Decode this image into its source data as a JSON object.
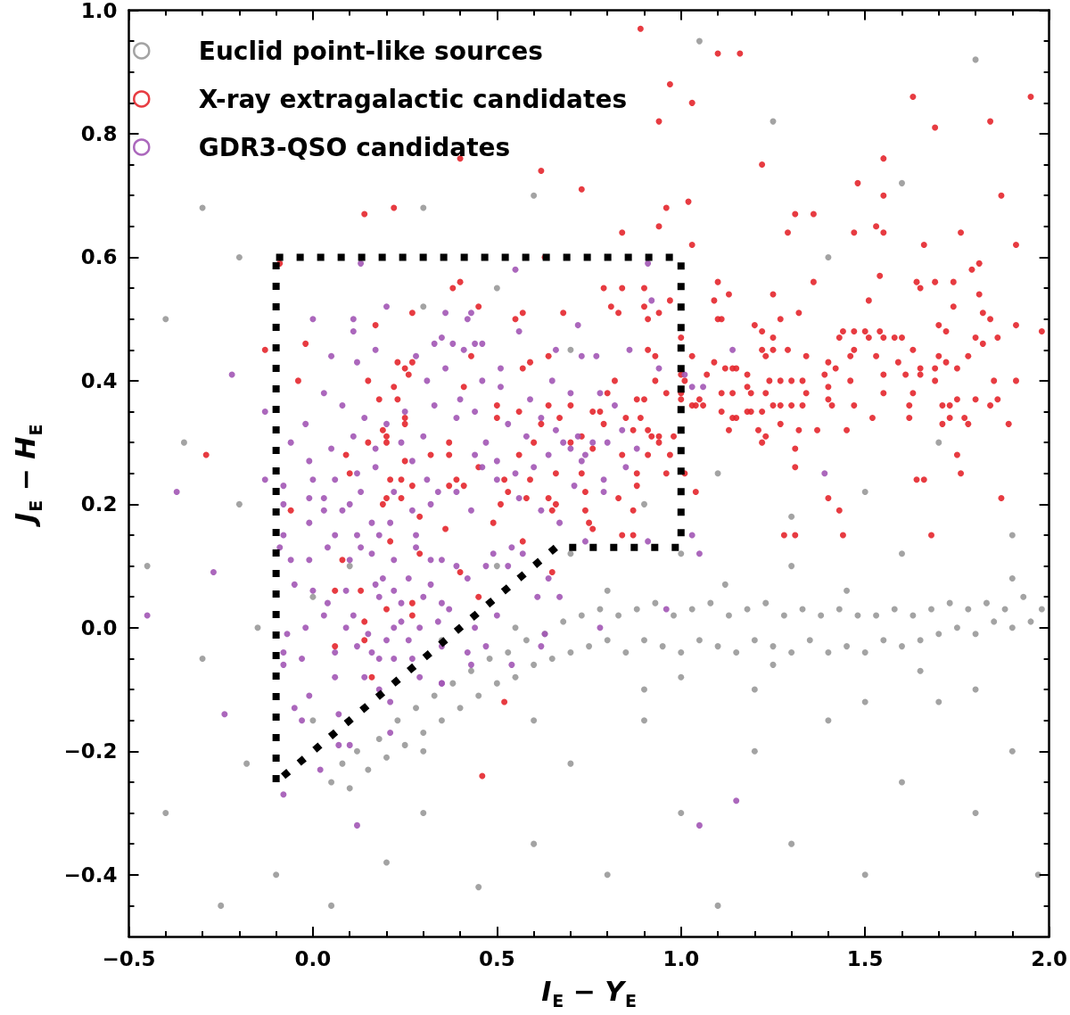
{
  "chart_data": {
    "type": "scatter",
    "xlabel": "I$_{E}$ − Y$_{E}$",
    "ylabel": "J$_{E}$ − H$_{E}$",
    "xlim": [
      -0.5,
      2.0
    ],
    "ylim": [
      -0.5,
      1.0
    ],
    "xticks": [
      {
        "value": -0.5,
        "label": "−0.5"
      },
      {
        "value": -0.4,
        "label": null
      },
      {
        "value": -0.3,
        "label": null
      },
      {
        "value": -0.2,
        "label": null
      },
      {
        "value": -0.1,
        "label": null
      },
      {
        "value": 0.0,
        "label": "0.0"
      },
      {
        "value": 0.1,
        "label": null
      },
      {
        "value": 0.2,
        "label": null
      },
      {
        "value": 0.3,
        "label": null
      },
      {
        "value": 0.4,
        "label": null
      },
      {
        "value": 0.5,
        "label": "0.5"
      },
      {
        "value": 0.6,
        "label": null
      },
      {
        "value": 0.7,
        "label": null
      },
      {
        "value": 0.8,
        "label": null
      },
      {
        "value": 0.9,
        "label": null
      },
      {
        "value": 1.0,
        "label": "1.0"
      },
      {
        "value": 1.1,
        "label": null
      },
      {
        "value": 1.2,
        "label": null
      },
      {
        "value": 1.3,
        "label": null
      },
      {
        "value": 1.4,
        "label": null
      },
      {
        "value": 1.5,
        "label": "1.5"
      },
      {
        "value": 1.6,
        "label": null
      },
      {
        "value": 1.7,
        "label": null
      },
      {
        "value": 1.8,
        "label": null
      },
      {
        "value": 1.9,
        "label": null
      },
      {
        "value": 2.0,
        "label": "2.0"
      }
    ],
    "yticks": [
      {
        "value": -0.45,
        "label": null
      },
      {
        "value": -0.4,
        "label": "−0.4"
      },
      {
        "value": -0.35,
        "label": null
      },
      {
        "value": -0.3,
        "label": null
      },
      {
        "value": -0.25,
        "label": null
      },
      {
        "value": -0.2,
        "label": "−0.2"
      },
      {
        "value": -0.15,
        "label": null
      },
      {
        "value": -0.1,
        "label": null
      },
      {
        "value": -0.05,
        "label": null
      },
      {
        "value": 0.0,
        "label": "0.0"
      },
      {
        "value": 0.05,
        "label": null
      },
      {
        "value": 0.1,
        "label": null
      },
      {
        "value": 0.15,
        "label": null
      },
      {
        "value": 0.2,
        "label": "0.2"
      },
      {
        "value": 0.25,
        "label": null
      },
      {
        "value": 0.3,
        "label": null
      },
      {
        "value": 0.35,
        "label": null
      },
      {
        "value": 0.4,
        "label": "0.4"
      },
      {
        "value": 0.45,
        "label": null
      },
      {
        "value": 0.5,
        "label": null
      },
      {
        "value": 0.55,
        "label": null
      },
      {
        "value": 0.6,
        "label": "0.6"
      },
      {
        "value": 0.65,
        "label": null
      },
      {
        "value": 0.7,
        "label": null
      },
      {
        "value": 0.75,
        "label": null
      },
      {
        "value": 0.8,
        "label": "0.8"
      },
      {
        "value": 0.85,
        "label": null
      },
      {
        "value": 0.9,
        "label": null
      },
      {
        "value": 0.95,
        "label": null
      },
      {
        "value": 1.0,
        "label": "1.0"
      }
    ],
    "legend": "top left",
    "marker": "circle",
    "series": [
      {
        "name": "Euclid point-like sources",
        "color": "#999999",
        "x": [
          0.05,
          0.08,
          0.1,
          0.12,
          0.15,
          0.18,
          0.2,
          0.23,
          0.25,
          0.28,
          0.3,
          0.33,
          0.35,
          0.38,
          0.4,
          0.43,
          0.45,
          0.48,
          0.5,
          0.53,
          0.55,
          0.58,
          0.6,
          0.63,
          0.65,
          0.68,
          0.7,
          0.73,
          0.75,
          0.78,
          0.8,
          0.83,
          0.85,
          0.88,
          0.9,
          0.93,
          0.95,
          0.98,
          1.0,
          1.03,
          1.05,
          1.08,
          1.1,
          1.13,
          1.15,
          1.18,
          1.2,
          1.23,
          1.25,
          1.28,
          1.3,
          1.33,
          1.35,
          1.38,
          1.4,
          1.43,
          1.45,
          1.48,
          1.5,
          1.53,
          1.55,
          1.58,
          1.6,
          1.63,
          1.65,
          1.68,
          1.7,
          1.73,
          1.75,
          1.78,
          1.8,
          1.83,
          1.85,
          1.88,
          1.9,
          1.93,
          1.95,
          1.98,
          -0.3,
          -0.4,
          -0.2,
          -0.35,
          -0.45,
          -0.3,
          -0.4,
          -0.25,
          -0.1,
          0.05,
          0.2,
          0.3,
          0.45,
          0.6,
          0.7,
          0.8,
          0.9,
          1.0,
          1.1,
          1.2,
          1.3,
          1.4,
          1.5,
          1.6,
          1.7,
          1.8,
          1.9,
          1.97,
          0.3,
          0.6,
          1.05,
          1.25,
          1.4,
          1.6,
          1.8,
          0.3,
          0.5,
          0.7,
          0.9,
          1.1,
          1.3,
          1.5,
          1.7,
          1.9,
          0.1,
          0.35,
          0.5,
          0.7,
          1.0,
          1.3,
          1.6,
          1.9,
          0.6,
          0.9,
          1.2,
          1.5,
          1.8,
          0.0,
          -0.18,
          0.3,
          -0.15,
          -0.2,
          0.0,
          1.0,
          1.25,
          1.45,
          1.65,
          0.8,
          0.55,
          1.12
        ],
        "values": [
          -0.25,
          -0.22,
          -0.26,
          -0.2,
          -0.23,
          -0.18,
          -0.21,
          -0.15,
          -0.19,
          -0.13,
          -0.17,
          -0.11,
          -0.15,
          -0.09,
          -0.13,
          -0.07,
          -0.11,
          -0.05,
          -0.09,
          -0.04,
          -0.08,
          -0.02,
          -0.06,
          -0.01,
          -0.05,
          0.01,
          -0.04,
          0.02,
          -0.03,
          0.03,
          -0.02,
          0.02,
          -0.04,
          0.03,
          -0.02,
          0.04,
          -0.03,
          0.02,
          -0.04,
          0.03,
          -0.02,
          0.04,
          -0.03,
          0.02,
          -0.04,
          0.03,
          -0.02,
          0.04,
          -0.03,
          0.02,
          -0.04,
          0.03,
          -0.02,
          0.02,
          -0.04,
          0.03,
          -0.03,
          0.02,
          -0.04,
          0.02,
          -0.02,
          0.03,
          -0.03,
          0.02,
          -0.02,
          0.03,
          -0.01,
          0.04,
          0.0,
          0.03,
          -0.01,
          0.04,
          0.01,
          0.03,
          0.0,
          0.05,
          0.01,
          0.03,
          0.68,
          0.5,
          0.6,
          0.3,
          0.1,
          -0.05,
          -0.3,
          -0.45,
          -0.4,
          -0.45,
          -0.38,
          -0.3,
          -0.42,
          -0.35,
          -0.22,
          -0.4,
          -0.15,
          -0.3,
          -0.45,
          -0.2,
          -0.35,
          -0.15,
          -0.4,
          -0.25,
          -0.12,
          -0.3,
          -0.2,
          -0.4,
          0.68,
          0.7,
          0.95,
          0.82,
          0.6,
          0.72,
          0.92,
          0.52,
          0.55,
          0.45,
          0.2,
          0.25,
          0.18,
          0.22,
          0.3,
          0.15,
          0.1,
          -0.02,
          0.1,
          0.12,
          0.12,
          0.1,
          0.12,
          0.08,
          -0.15,
          -0.1,
          -0.1,
          -0.12,
          -0.1,
          -0.15,
          -0.22,
          -0.2,
          0.0,
          0.2,
          0.05,
          -0.08,
          -0.06,
          0.06,
          -0.07,
          0.06,
          0.0,
          0.07
        ]
      },
      {
        "name": "X-ray extragalactic candidates",
        "color": "#e4262c",
        "x": [
          0.89,
          1.1,
          1.16,
          0.97,
          1.03,
          0.94,
          0.4,
          0.62,
          0.73,
          1.02,
          0.96,
          0.94,
          0.84,
          1.03,
          0.14,
          0.22,
          -0.09,
          0.63,
          1.63,
          1.95,
          1.69,
          1.84,
          1.55,
          1.22,
          1.48,
          1.55,
          1.87,
          1.31,
          1.36,
          1.29,
          1.47,
          1.53,
          1.55,
          1.76,
          1.66,
          1.91,
          1.79,
          1.81,
          1.36,
          1.54,
          1.64,
          1.65,
          1.69,
          1.74,
          1.81,
          1.25,
          1.51,
          1.74,
          1.32,
          1.27,
          1.82,
          1.84,
          1.2,
          1.22,
          1.25,
          1.44,
          1.43,
          1.47,
          1.5,
          1.51,
          1.54,
          1.55,
          1.58,
          1.6,
          1.7,
          1.72,
          1.8,
          1.82,
          1.86,
          1.91,
          1.98,
          1.22,
          1.23,
          1.25,
          1.29,
          1.63,
          1.7,
          1.78,
          1.34,
          1.4,
          1.46,
          1.47,
          1.53,
          1.59,
          1.72,
          1.18,
          1.39,
          1.42,
          1.55,
          1.61,
          1.65,
          1.65,
          1.69,
          1.75,
          1.18,
          1.24,
          1.27,
          1.3,
          1.33,
          1.4,
          1.46,
          1.69,
          1.85,
          1.91,
          1.19,
          1.23,
          1.34,
          1.4,
          1.55,
          1.63,
          1.25,
          1.27,
          1.3,
          1.33,
          1.41,
          1.47,
          1.62,
          1.71,
          1.73,
          1.75,
          1.8,
          1.84,
          1.86,
          1.18,
          1.19,
          1.22,
          1.27,
          1.52,
          1.62,
          1.73,
          1.71,
          1.77,
          1.78,
          1.89,
          1.21,
          1.23,
          1.22,
          1.32,
          1.37,
          1.45,
          1.31,
          1.75,
          1.31,
          1.76,
          1.4,
          1.43,
          1.87,
          1.64,
          1.66,
          1.28,
          1.31,
          1.44,
          1.68,
          0.4,
          0.38,
          0.45,
          0.55,
          0.57,
          0.68,
          0.79,
          0.84,
          0.9,
          0.97,
          0.81,
          0.83,
          0.9,
          0.91,
          0.94,
          1.09,
          1.1,
          1.13,
          1.1,
          1.11,
          1.0,
          0.43,
          0.64,
          0.57,
          0.59,
          0.91,
          0.93,
          1.03,
          1.09,
          1.07,
          1.12,
          1.14,
          1.15,
          1.0,
          1.01,
          0.82,
          0.93,
          0.41,
          0.8,
          0.88,
          0.9,
          0.96,
          1.0,
          1.0,
          1.11,
          1.14,
          1.03,
          1.04,
          1.05,
          1.06,
          1.11,
          1.14,
          1.15,
          1.13,
          0.5,
          0.56,
          0.64,
          0.7,
          0.78,
          0.67,
          0.76,
          0.5,
          0.62,
          0.79,
          0.85,
          0.89,
          0.91,
          0.94,
          0.92,
          0.87,
          0.37,
          0.73,
          0.7,
          0.76,
          0.94,
          0.98,
          0.6,
          0.37,
          0.56,
          0.84,
          0.91,
          0.97,
          0.27,
          0.17,
          -0.02,
          -0.13,
          0.23,
          0.25,
          0.27,
          0.26,
          -0.04,
          0.15,
          0.22,
          0.18,
          0.23,
          0.25,
          0.25,
          0.19,
          0.2,
          -0.29,
          0.2,
          0.15,
          0.09,
          0.25,
          0.32,
          0.1,
          -0.06,
          0.21,
          0.24,
          0.27,
          0.2,
          0.19,
          0.24,
          0.29,
          0.21,
          0.29,
          0.08,
          0.06,
          0.13,
          0.27,
          0.2,
          0.14,
          0.27,
          0.14,
          0.06,
          0.16,
          0.39,
          0.41,
          0.45,
          0.52,
          0.59,
          0.66,
          0.73,
          0.88,
          0.88,
          0.96,
          1.01,
          1.04,
          0.53,
          0.51,
          0.58,
          0.64,
          0.66,
          0.65,
          0.74,
          0.74,
          0.75,
          0.83,
          0.87,
          0.76,
          0.84,
          0.87,
          0.37,
          0.36,
          0.49,
          0.57,
          0.4,
          0.65,
          0.45,
          0.52,
          0.46
        ],
        "values": [
          0.97,
          0.93,
          0.93,
          0.88,
          0.85,
          0.82,
          0.76,
          0.74,
          0.71,
          0.69,
          0.68,
          0.65,
          0.64,
          0.62,
          0.67,
          0.68,
          0.59,
          0.6,
          0.86,
          0.86,
          0.81,
          0.82,
          0.76,
          0.75,
          0.72,
          0.7,
          0.7,
          0.67,
          0.67,
          0.64,
          0.64,
          0.65,
          0.64,
          0.64,
          0.62,
          0.62,
          0.58,
          0.59,
          0.56,
          0.57,
          0.56,
          0.55,
          0.56,
          0.56,
          0.54,
          0.54,
          0.53,
          0.52,
          0.51,
          0.5,
          0.51,
          0.5,
          0.49,
          0.48,
          0.47,
          0.48,
          0.47,
          0.48,
          0.48,
          0.47,
          0.48,
          0.47,
          0.47,
          0.47,
          0.49,
          0.48,
          0.47,
          0.46,
          0.47,
          0.49,
          0.48,
          0.45,
          0.44,
          0.45,
          0.45,
          0.45,
          0.44,
          0.44,
          0.44,
          0.43,
          0.44,
          0.45,
          0.44,
          0.43,
          0.43,
          0.41,
          0.41,
          0.42,
          0.41,
          0.41,
          0.42,
          0.41,
          0.42,
          0.42,
          0.39,
          0.4,
          0.4,
          0.4,
          0.4,
          0.39,
          0.4,
          0.4,
          0.4,
          0.4,
          0.38,
          0.38,
          0.38,
          0.37,
          0.38,
          0.38,
          0.36,
          0.36,
          0.36,
          0.36,
          0.36,
          0.36,
          0.36,
          0.36,
          0.36,
          0.37,
          0.37,
          0.36,
          0.37,
          0.35,
          0.35,
          0.35,
          0.33,
          0.34,
          0.34,
          0.34,
          0.33,
          0.34,
          0.33,
          0.33,
          0.32,
          0.31,
          0.3,
          0.32,
          0.32,
          0.32,
          0.29,
          0.28,
          0.26,
          0.25,
          0.21,
          0.19,
          0.21,
          0.24,
          0.24,
          0.15,
          0.15,
          0.15,
          0.15,
          0.56,
          0.55,
          0.52,
          0.5,
          0.51,
          0.51,
          0.55,
          0.55,
          0.55,
          0.53,
          0.52,
          0.51,
          0.52,
          0.5,
          0.51,
          0.53,
          0.56,
          0.54,
          0.5,
          0.5,
          0.47,
          0.44,
          0.44,
          0.42,
          0.43,
          0.45,
          0.44,
          0.44,
          0.43,
          0.41,
          0.42,
          0.42,
          0.42,
          0.41,
          0.4,
          0.4,
          0.4,
          0.39,
          0.38,
          0.37,
          0.37,
          0.38,
          0.38,
          0.37,
          0.38,
          0.38,
          0.36,
          0.36,
          0.37,
          0.36,
          0.35,
          0.34,
          0.34,
          0.32,
          0.36,
          0.35,
          0.36,
          0.36,
          0.35,
          0.34,
          0.35,
          0.34,
          0.33,
          0.33,
          0.34,
          0.34,
          0.32,
          0.31,
          0.31,
          0.32,
          0.3,
          0.31,
          0.3,
          0.29,
          0.3,
          0.31,
          0.3,
          0.28,
          0.28,
          0.28,
          0.28,
          0.28,
          0.51,
          0.49,
          0.46,
          0.45,
          0.43,
          0.42,
          0.43,
          0.41,
          0.4,
          0.4,
          0.39,
          0.37,
          0.37,
          0.34,
          0.33,
          0.32,
          0.31,
          0.28,
          0.3,
          0.3,
          0.28,
          0.27,
          0.28,
          0.25,
          0.19,
          0.24,
          0.24,
          0.23,
          0.21,
          0.2,
          0.21,
          0.18,
          0.14,
          0.12,
          0.11,
          0.06,
          0.06,
          0.04,
          0.03,
          0.01,
          0.02,
          -0.02,
          -0.03,
          -0.08,
          0.24,
          0.23,
          0.26,
          0.24,
          0.24,
          0.25,
          0.25,
          0.25,
          0.23,
          0.25,
          0.25,
          0.22,
          0.22,
          0.2,
          0.21,
          0.21,
          0.2,
          0.19,
          0.22,
          0.19,
          0.17,
          0.21,
          0.19,
          0.16,
          0.15,
          0.15,
          0.23,
          0.16,
          0.17,
          0.14,
          0.09,
          0.09,
          0.05,
          -0.12,
          -0.24
        ]
      },
      {
        "name": "GDR3-QSO candidates",
        "color": "#a256b5",
        "x": [
          -0.45,
          -0.37,
          -0.22,
          -0.27,
          -0.24,
          -0.08,
          0.12,
          1.15,
          1.05,
          0.96,
          0.78,
          1.39,
          1.05,
          1.03,
          0.13,
          0.55,
          0.91,
          0.2,
          0.0,
          0.11,
          0.11,
          -0.13,
          0.92,
          0.36,
          0.42,
          0.43,
          0.56,
          0.72,
          0.35,
          0.38,
          0.44,
          0.46,
          0.66,
          0.73,
          0.77,
          0.86,
          0.94,
          0.51,
          1.14,
          1.01,
          1.03,
          1.06,
          -0.13,
          -0.08,
          0.0,
          0.06,
          0.12,
          0.17,
          -0.08,
          -0.01,
          0.03,
          0.1,
          0.16,
          -0.08,
          -0.01,
          0.06,
          0.12,
          0.18,
          0.21,
          0.28,
          0.32,
          -0.09,
          -0.06,
          -0.01,
          0.04,
          0.1,
          0.16,
          0.22,
          0.32,
          -0.05,
          0.0,
          0.04,
          0.09,
          0.17,
          0.22,
          0.26,
          0.32,
          -0.07,
          -0.02,
          0.03,
          0.09,
          0.15,
          0.2,
          0.24,
          0.29,
          0.34,
          -0.08,
          -0.03,
          0.06,
          0.12,
          0.18,
          0.22,
          0.27,
          -0.08,
          -0.01,
          0.06,
          0.14,
          0.18,
          0.21,
          0.29,
          0.35,
          -0.05,
          -0.03,
          0.07,
          0.21,
          0.07,
          0.1,
          0.02,
          0.34,
          0.39,
          0.43,
          0.46,
          0.5,
          0.56,
          0.62,
          0.67,
          0.71,
          0.79,
          0.79,
          0.85,
          0.74,
          0.91,
          0.35,
          0.42,
          0.39,
          0.47,
          0.49,
          0.54,
          0.57,
          0.53,
          0.64,
          0.61,
          0.67,
          0.35,
          0.37,
          0.5,
          0.44,
          0.63,
          0.62,
          0.35,
          0.42,
          0.47,
          0.43,
          0.54,
          0.35,
          0.68,
          0.7,
          0.72,
          0.74,
          0.66,
          0.73,
          0.76,
          0.62,
          0.58,
          0.53,
          0.47,
          0.44,
          0.5,
          0.55,
          0.6,
          0.64,
          0.8,
          0.84,
          0.88,
          0.82,
          0.78,
          0.7,
          0.65,
          0.59,
          0.51,
          0.46,
          0.39,
          0.33,
          0.3,
          0.27,
          0.24,
          0.2,
          0.14,
          0.08,
          0.03,
          -0.02,
          -0.06,
          -0.01,
          0.05,
          0.11,
          0.17,
          0.25,
          0.31,
          0.36,
          0.4,
          0.44,
          0.05,
          0.12,
          0.17,
          0.28,
          0.33,
          0.41,
          0.22,
          0.27,
          0.31,
          0.13,
          0.08,
          0.03,
          0.19,
          0.24,
          0.11,
          0.13,
          0.18,
          0.28,
          0.3,
          0.22,
          0.26,
          0.16
        ],
        "values": [
          0.02,
          0.22,
          0.41,
          0.09,
          -0.14,
          -0.27,
          -0.32,
          -0.28,
          -0.32,
          0.03,
          0.0,
          0.25,
          0.12,
          0.15,
          0.59,
          0.58,
          0.59,
          0.52,
          0.5,
          0.5,
          0.48,
          0.35,
          0.53,
          0.51,
          0.5,
          0.51,
          0.48,
          0.49,
          0.47,
          0.46,
          0.46,
          0.46,
          0.45,
          0.44,
          0.44,
          0.45,
          0.42,
          0.42,
          0.45,
          0.41,
          0.39,
          0.39,
          0.24,
          0.23,
          0.24,
          0.24,
          0.25,
          0.26,
          0.2,
          0.21,
          0.19,
          0.2,
          0.17,
          0.15,
          0.17,
          0.15,
          0.15,
          0.15,
          0.17,
          0.15,
          0.2,
          0.13,
          0.11,
          0.11,
          0.13,
          0.11,
          0.12,
          0.11,
          0.11,
          0.07,
          0.06,
          0.04,
          0.06,
          0.07,
          0.06,
          0.08,
          0.07,
          -0.01,
          0.0,
          0.02,
          0.0,
          -0.01,
          -0.02,
          0.01,
          0.0,
          0.01,
          -0.04,
          -0.05,
          -0.04,
          -0.03,
          -0.05,
          -0.05,
          -0.05,
          -0.06,
          -0.11,
          -0.08,
          -0.08,
          -0.1,
          -0.12,
          -0.08,
          -0.09,
          -0.13,
          -0.15,
          -0.14,
          -0.17,
          -0.19,
          -0.19,
          -0.23,
          0.22,
          0.22,
          0.19,
          0.26,
          0.24,
          0.21,
          0.19,
          0.17,
          0.23,
          0.22,
          0.24,
          0.26,
          0.14,
          0.14,
          0.11,
          0.08,
          0.1,
          0.1,
          0.12,
          0.13,
          0.12,
          0.1,
          0.08,
          0.05,
          0.05,
          0.04,
          0.03,
          0.02,
          0.0,
          -0.01,
          -0.03,
          -0.03,
          -0.04,
          -0.03,
          -0.06,
          -0.06,
          -0.09,
          0.3,
          0.29,
          0.31,
          0.28,
          0.32,
          0.27,
          0.3,
          0.34,
          0.31,
          0.33,
          0.3,
          0.28,
          0.27,
          0.25,
          0.26,
          0.28,
          0.3,
          0.32,
          0.29,
          0.36,
          0.38,
          0.38,
          0.4,
          0.37,
          0.39,
          0.4,
          0.34,
          0.36,
          0.31,
          0.27,
          0.3,
          0.33,
          0.34,
          0.36,
          0.38,
          0.33,
          0.3,
          0.27,
          0.29,
          0.31,
          0.29,
          0.35,
          0.4,
          0.42,
          0.37,
          0.35,
          0.44,
          0.43,
          0.45,
          0.44,
          0.46,
          0.45,
          0.22,
          0.19,
          0.24,
          0.22,
          0.19,
          0.21,
          0.08,
          0.04,
          0.02,
          0.13,
          0.05,
          0.13,
          0.05,
          0.0,
          -0.02,
          -0.04
        ]
      },
      {
        "type": "line",
        "color": "#000000",
        "line_style": "dotted",
        "marker": "none",
        "x": [
          -0.1,
          1.0,
          1.0,
          0.66,
          -0.1
        ],
        "values": [
          0.6,
          0.6,
          0.13,
          0.13,
          -0.25
        ]
      },
      {
        "type": "line",
        "color": "#000000",
        "line_style": "dotted",
        "marker": "none",
        "x": [
          -0.1,
          -0.1
        ],
        "values": [
          -0.25,
          0.6
        ]
      }
    ]
  }
}
